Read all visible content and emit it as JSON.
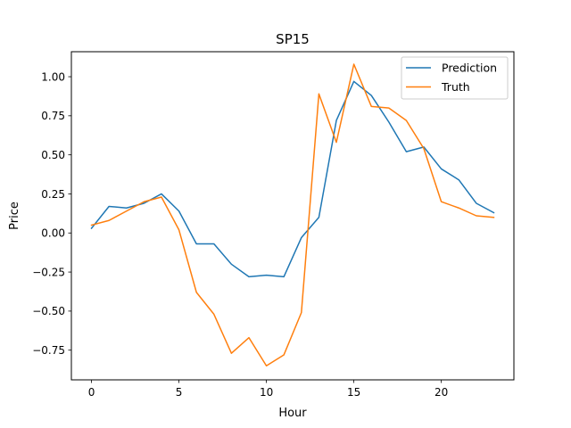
{
  "chart_data": {
    "type": "line",
    "title": "SP15",
    "xlabel": "Hour",
    "ylabel": "Price",
    "xlim": [
      -1.15,
      24.15
    ],
    "ylim": [
      -0.94,
      1.16
    ],
    "xticks": [
      0,
      5,
      10,
      15,
      20
    ],
    "yticks": [
      -0.75,
      -0.5,
      -0.25,
      0.0,
      0.25,
      0.5,
      0.75,
      1.0
    ],
    "ytick_labels": [
      "−0.75",
      "−0.50",
      "−0.25",
      "0.00",
      "0.25",
      "0.50",
      "0.75",
      "1.00"
    ],
    "grid": false,
    "legend_position": "top-right",
    "x": [
      0,
      1,
      2,
      3,
      4,
      5,
      6,
      7,
      8,
      9,
      10,
      11,
      12,
      13,
      14,
      15,
      16,
      17,
      18,
      19,
      20,
      21,
      22,
      23
    ],
    "series": [
      {
        "name": "Prediction",
        "color": "#1f77b4",
        "values": [
          0.03,
          0.17,
          0.16,
          0.19,
          0.25,
          0.14,
          -0.07,
          -0.07,
          -0.2,
          -0.28,
          -0.27,
          -0.28,
          -0.03,
          0.1,
          0.72,
          0.97,
          0.88,
          0.71,
          0.52,
          0.55,
          0.41,
          0.34,
          0.19,
          0.13
        ]
      },
      {
        "name": "Truth",
        "color": "#ff7f0e",
        "values": [
          0.05,
          0.08,
          0.14,
          0.2,
          0.23,
          0.02,
          -0.38,
          -0.52,
          -0.77,
          -0.67,
          -0.85,
          -0.78,
          -0.51,
          0.89,
          0.58,
          1.08,
          0.81,
          0.8,
          0.72,
          0.54,
          0.2,
          0.16,
          0.11,
          0.1
        ]
      }
    ]
  }
}
